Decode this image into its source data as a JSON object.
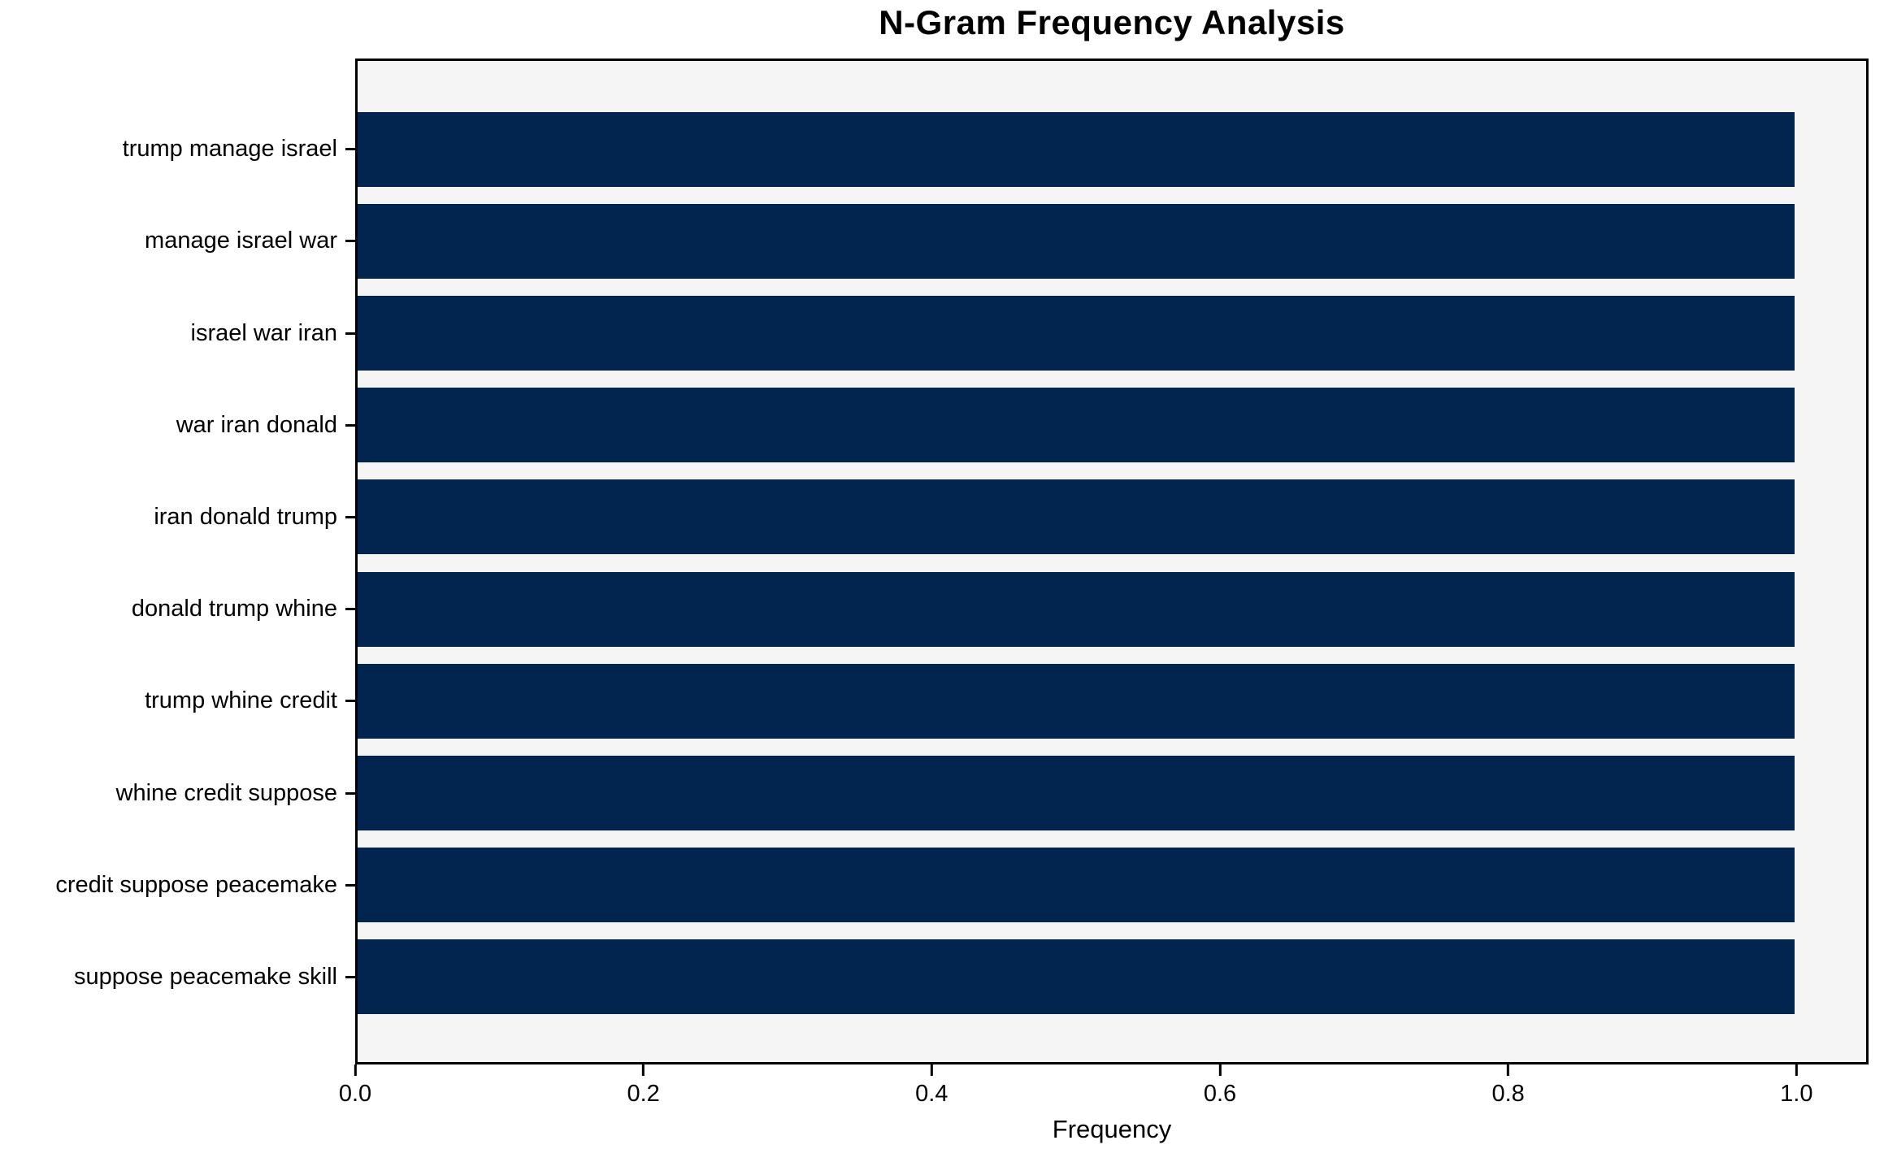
{
  "chart_data": {
    "type": "bar",
    "orientation": "horizontal",
    "title": "N-Gram Frequency Analysis",
    "xlabel": "Frequency",
    "ylabel": "",
    "categories": [
      "trump manage israel",
      "manage israel war",
      "israel war iran",
      "war iran donald",
      "iran donald trump",
      "donald trump whine",
      "trump whine credit",
      "whine credit suppose",
      "credit suppose peacemake",
      "suppose peacemake skill"
    ],
    "values": [
      1.0,
      1.0,
      1.0,
      1.0,
      1.0,
      1.0,
      1.0,
      1.0,
      1.0,
      1.0
    ],
    "xlim": [
      0,
      1.05
    ],
    "xtick_values": [
      0.0,
      0.2,
      0.4,
      0.6,
      0.8,
      1.0
    ],
    "xtick_labels": [
      "0.0",
      "0.2",
      "0.4",
      "0.6",
      "0.8",
      "1.0"
    ],
    "grid": false,
    "legend": null,
    "bar_color": "#02254f",
    "plot_bg": "#f5f5f5",
    "spine_color": "#000000"
  }
}
